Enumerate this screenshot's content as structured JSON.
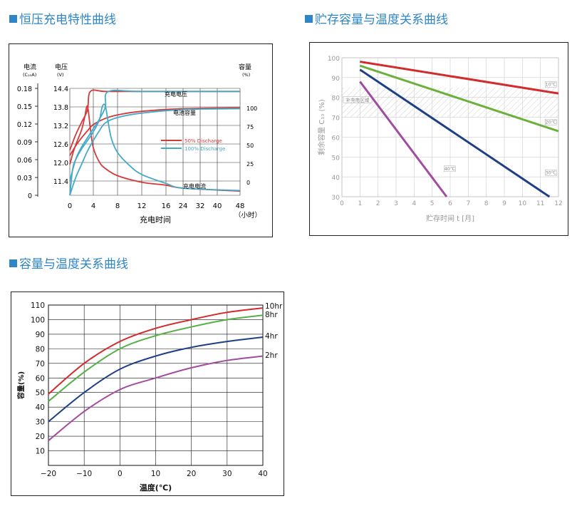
{
  "titles": {
    "c1": "恒压充电特性曲线",
    "c2": "贮存容量与温度关系曲线",
    "c3": "容量与温度关系曲线"
  },
  "chart_data": [
    {
      "type": "line",
      "title": "恒压充电特性曲线",
      "xlabel": "充电时间",
      "x_unit": "（小时）",
      "x_ticks": [
        "0",
        "4",
        "8",
        "12",
        "16",
        "24",
        "32",
        "40",
        "48"
      ],
      "axis_labels": {
        "current": "电流",
        "current_unit": "(C₁₀A)",
        "voltage": "电压",
        "voltage_unit": "(V)",
        "capacity": "容量",
        "capacity_unit": "(%)"
      },
      "current_ticks": [
        "0.18",
        "0.15",
        "0.12",
        "0.09",
        "0.06",
        "0.03",
        "0"
      ],
      "voltage_ticks": [
        "14.4",
        "13.8",
        "13.2",
        "12.6",
        "12.0",
        "11.4"
      ],
      "capacity_ticks": [
        "100",
        "75",
        "50",
        "25",
        "0"
      ],
      "curve_labels": {
        "voltage": "充电电压",
        "capacity": "电池容量",
        "current": "充电电流"
      },
      "legend": [
        {
          "name": "50% Discharge",
          "color": "#d43a3a"
        },
        {
          "name": "100% Discharge",
          "color": "#45a9c9"
        }
      ],
      "series": [
        {
          "name": "50% Discharge",
          "kind": "voltage",
          "x": [
            0,
            1,
            2,
            3,
            3.5,
            6,
            12,
            24,
            48
          ],
          "y": [
            12.4,
            12.9,
            13.3,
            13.7,
            14.3,
            14.3,
            14.3,
            14.3,
            14.3
          ]
        },
        {
          "name": "50% Discharge",
          "kind": "capacity",
          "x": [
            0,
            1,
            2,
            3,
            4,
            6,
            8,
            12,
            24,
            48
          ],
          "y": [
            45,
            56,
            65,
            73,
            80,
            87,
            91,
            95,
            98,
            99
          ]
        },
        {
          "name": "50% Discharge",
          "kind": "current",
          "x": [
            0,
            0.5,
            1,
            2,
            2.5,
            3,
            3.5,
            4,
            5,
            6,
            8,
            12,
            16,
            24,
            48
          ],
          "y": [
            0.052,
            0.07,
            0.085,
            0.11,
            0.13,
            0.15,
            0.112,
            0.08,
            0.056,
            0.045,
            0.033,
            0.022,
            0.017,
            0.012,
            0.007
          ]
        },
        {
          "name": "100% Discharge",
          "kind": "voltage",
          "x": [
            0,
            1,
            2,
            3,
            4,
            5,
            6,
            6.5,
            12,
            48
          ],
          "y": [
            11.4,
            12.1,
            12.5,
            12.8,
            13.1,
            13.4,
            13.8,
            14.3,
            14.3,
            14.3
          ]
        },
        {
          "name": "100% Discharge",
          "kind": "capacity",
          "x": [
            0,
            1,
            2,
            3,
            4,
            5,
            6,
            8,
            12,
            24,
            48
          ],
          "y": [
            0,
            20,
            35,
            50,
            62,
            73,
            82,
            88,
            93,
            97,
            98
          ]
        },
        {
          "name": "100% Discharge",
          "kind": "current",
          "x": [
            0,
            0.5,
            1,
            2,
            3,
            4,
            5,
            5.5,
            6,
            6.5,
            7,
            8,
            10,
            12,
            16,
            24,
            48
          ],
          "y": [
            0.0,
            0.045,
            0.06,
            0.078,
            0.092,
            0.107,
            0.127,
            0.15,
            0.15,
            0.12,
            0.095,
            0.072,
            0.05,
            0.035,
            0.02,
            0.012,
            0.008
          ]
        }
      ]
    },
    {
      "type": "line",
      "title": "贮存容量与温度关系曲线",
      "xlabel": "贮存时间 t [月]",
      "ylabel": "剩余容量 C₁₀ (%)",
      "xlim": [
        0,
        12
      ],
      "ylim": [
        30,
        100
      ],
      "x_ticks": [
        0,
        1,
        2,
        3,
        4,
        5,
        6,
        7,
        8,
        9,
        10,
        11,
        12
      ],
      "y_ticks": [
        30,
        40,
        50,
        60,
        70,
        80,
        90,
        100
      ],
      "band": {
        "y": [
          70,
          85
        ],
        "label": "补充电区域"
      },
      "series": [
        {
          "name": "10℃",
          "color": "#d42a2a",
          "x": [
            1,
            12
          ],
          "y": [
            98,
            82
          ]
        },
        {
          "name": "20℃",
          "color": "#6ab03a",
          "x": [
            1,
            12
          ],
          "y": [
            96,
            63
          ]
        },
        {
          "name": "30℃",
          "color": "#1d3f86",
          "x": [
            1,
            11.5
          ],
          "y": [
            94,
            30
          ]
        },
        {
          "name": "40℃",
          "color": "#a24ca0",
          "x": [
            1,
            5.8
          ],
          "y": [
            88,
            30
          ]
        }
      ]
    },
    {
      "type": "line",
      "title": "容量与温度关系曲线",
      "xlabel": "温度(℃)",
      "ylabel": "容量(%)",
      "xlim": [
        -20,
        40
      ],
      "ylim": [
        0,
        110
      ],
      "x_ticks": [
        -20,
        -10,
        0,
        10,
        20,
        30,
        40
      ],
      "y_ticks": [
        10,
        20,
        30,
        40,
        50,
        60,
        70,
        80,
        90,
        100,
        110
      ],
      "series": [
        {
          "name": "10hr",
          "color": "#d42a2a",
          "x": [
            -20,
            -10,
            0,
            10,
            20,
            30,
            40
          ],
          "y": [
            49,
            70,
            85,
            94,
            100,
            105,
            108
          ]
        },
        {
          "name": "8hr",
          "color": "#55b046",
          "x": [
            -20,
            -10,
            0,
            10,
            20,
            30,
            40
          ],
          "y": [
            44,
            64,
            80,
            89,
            95,
            100,
            103
          ]
        },
        {
          "name": "4hr",
          "color": "#1d3f86",
          "x": [
            -20,
            -10,
            0,
            10,
            20,
            30,
            40
          ],
          "y": [
            30,
            50,
            66,
            75,
            81,
            85,
            88
          ]
        },
        {
          "name": "2hr",
          "color": "#a24ca0",
          "x": [
            -20,
            -10,
            0,
            10,
            20,
            30,
            40
          ],
          "y": [
            17,
            37,
            52,
            60,
            67,
            72,
            75
          ]
        }
      ]
    }
  ]
}
